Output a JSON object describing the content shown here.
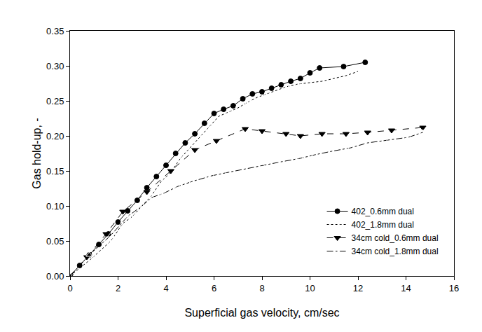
{
  "chart_data": {
    "type": "line",
    "x_label": "Superficial gas velocity, cm/sec",
    "y_label": "Gas hold-up, -",
    "xlim": [
      0,
      16
    ],
    "xticks": [
      0,
      2,
      4,
      6,
      8,
      10,
      12,
      14,
      16
    ],
    "ylim": [
      0,
      0.35
    ],
    "yticks": [
      {
        "value": 0,
        "label": "0.00"
      },
      0.05,
      {
        "value": 0.1,
        "label": "0.10"
      },
      0.15,
      {
        "value": 0.2,
        "label": "0.20"
      },
      0.25,
      {
        "value": 0.3,
        "label": "0.30"
      },
      0.35
    ],
    "grid": false,
    "legend": "lower right",
    "series": [
      {
        "name": "402_0.6mm dual",
        "color": "#000000",
        "marker": "circle",
        "line_style": "solid",
        "x": [
          0,
          0.4,
          0.8,
          1.2,
          1.6,
          2.0,
          2.4,
          2.8,
          3.2,
          3.6,
          4.0,
          4.4,
          4.8,
          5.2,
          5.6,
          6.0,
          6.4,
          6.8,
          7.2,
          7.6,
          8.0,
          8.4,
          8.8,
          9.2,
          9.6,
          10.0,
          10.4,
          11.4,
          12.3
        ],
        "values": [
          0,
          0.015,
          0.03,
          0.045,
          0.06,
          0.077,
          0.093,
          0.108,
          0.126,
          0.142,
          0.158,
          0.175,
          0.19,
          0.203,
          0.218,
          0.232,
          0.238,
          0.243,
          0.253,
          0.26,
          0.263,
          0.268,
          0.273,
          0.278,
          0.282,
          0.29,
          0.297,
          0.299,
          0.305
        ]
      },
      {
        "name": "402_1.8mm dual",
        "color": "#000000",
        "marker": "circle-open",
        "line_style": "dot",
        "x": [
          0,
          0.9,
          1.7,
          2.2,
          2.6,
          3.0,
          3.4,
          3.8,
          4.2,
          4.6,
          5.0,
          5.4,
          5.8,
          6.2,
          6.6,
          7.0,
          7.4,
          7.8,
          8.2,
          8.6,
          9.0,
          9.5,
          10.5,
          11.5,
          12.0
        ],
        "values": [
          0,
          0.025,
          0.05,
          0.075,
          0.085,
          0.1,
          0.115,
          0.135,
          0.148,
          0.168,
          0.183,
          0.198,
          0.212,
          0.228,
          0.234,
          0.24,
          0.248,
          0.255,
          0.26,
          0.265,
          0.27,
          0.274,
          0.278,
          0.286,
          0.292
        ]
      },
      {
        "name": "34cm cold_0.6mm dual",
        "color": "#000000",
        "marker": "triangle-down",
        "line_style": "dash",
        "x": [
          0,
          0.7,
          1.5,
          2.2,
          3.2,
          4.2,
          5.2,
          6.1,
          7.3,
          8.0,
          9.0,
          9.6,
          10.5,
          11.5,
          12.4,
          13.4,
          14.7
        ],
        "values": [
          0,
          0.027,
          0.06,
          0.092,
          0.12,
          0.15,
          0.18,
          0.193,
          0.21,
          0.207,
          0.203,
          0.2,
          0.203,
          0.203,
          0.205,
          0.208,
          0.212
        ]
      },
      {
        "name": "34cm cold_1.8mm dual",
        "color": "#000000",
        "marker": "triangle-up-open",
        "line_style": "dashdot",
        "x": [
          0,
          0.8,
          1.7,
          2.4,
          3.0,
          3.4,
          3.9,
          4.5,
          5.1,
          5.9,
          6.6,
          7.3,
          8.0,
          8.8,
          9.6,
          10.2,
          10.9,
          11.7,
          12.4,
          13.3,
          14.1,
          14.7
        ],
        "values": [
          0,
          0.03,
          0.058,
          0.085,
          0.1,
          0.112,
          0.118,
          0.128,
          0.135,
          0.143,
          0.148,
          0.153,
          0.158,
          0.163,
          0.168,
          0.173,
          0.178,
          0.183,
          0.19,
          0.194,
          0.198,
          0.205
        ]
      }
    ]
  }
}
